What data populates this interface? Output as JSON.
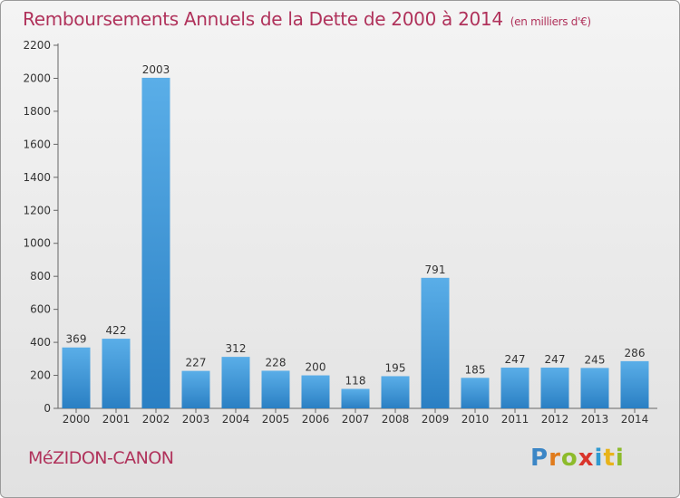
{
  "title": "Remboursements Annuels de la Dette de 2000 à 2014",
  "unit": "(en milliers d'€)",
  "commune": "MéZIDON-CANON",
  "logo_text": "Proxiti",
  "colors": {
    "bar_top": "#5aaee8",
    "bar_bottom": "#2a7fc3",
    "title": "#b0325b"
  },
  "chart_data": {
    "type": "bar",
    "categories": [
      "2000",
      "2001",
      "2002",
      "2003",
      "2004",
      "2005",
      "2006",
      "2007",
      "2008",
      "2009",
      "2010",
      "2011",
      "2012",
      "2013",
      "2014"
    ],
    "values": [
      369,
      422,
      2003,
      227,
      312,
      228,
      200,
      118,
      195,
      791,
      185,
      247,
      247,
      245,
      286
    ],
    "ylim": [
      0,
      2200
    ],
    "yticks": [
      0,
      200,
      400,
      600,
      800,
      1000,
      1200,
      1400,
      1600,
      1800,
      2000,
      2200
    ],
    "title": "Remboursements Annuels de la Dette de 2000 à 2014",
    "xlabel": "",
    "ylabel": "",
    "grid": false,
    "data_labels": true
  }
}
